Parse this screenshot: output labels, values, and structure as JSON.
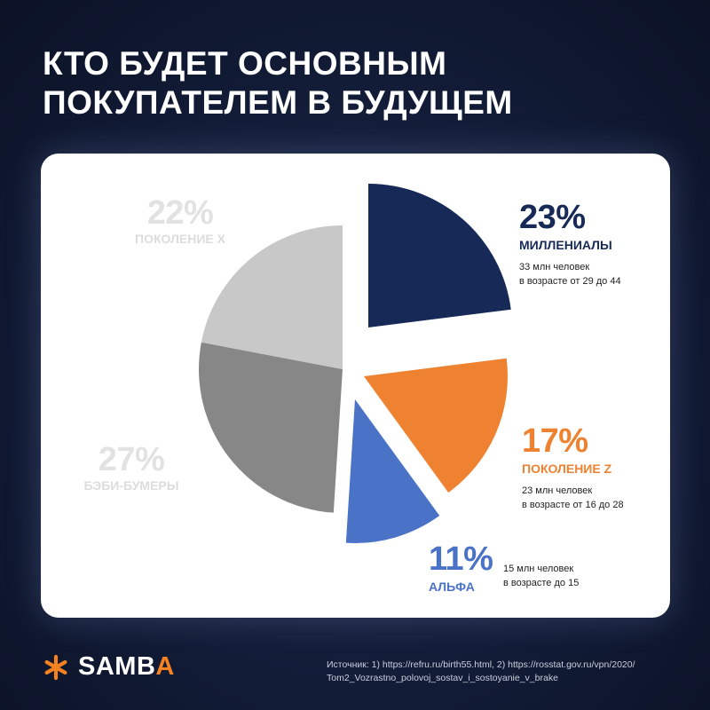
{
  "title": {
    "line1": "КТО БУДЕТ ОСНОВНЫМ",
    "line2": "ПОКУПАТЕЛЕМ В БУДУЩЕМ"
  },
  "chart_data": {
    "type": "pie",
    "title": "КТО БУДЕТ ОСНОВНЫМ ПОКУПАТЕЛЕМ В БУДУЩЕМ",
    "slices": [
      {
        "name": "МИЛЛЕНИАЛЫ",
        "value": 23,
        "label": "23%",
        "color": "#172a57",
        "desc1": "33 млн человек",
        "desc2": "в возрасте от 29 до 44"
      },
      {
        "name": "ПОКОЛЕНИЕ Z",
        "value": 17,
        "label": "17%",
        "color": "#ef8230",
        "desc1": "23 млн человек",
        "desc2": "в возрасте от 16 до 28"
      },
      {
        "name": "АЛЬФА",
        "value": 11,
        "label": "11%",
        "color": "#4a72c6",
        "desc1": "15 млн человек",
        "desc2": "в возрасте до 15"
      },
      {
        "name": "БЭБИ-БУМЕРЫ",
        "value": 27,
        "label": "27%",
        "color": "#878787"
      },
      {
        "name": "ПОКОЛЕНИЕ X",
        "value": 22,
        "label": "22%",
        "color": "#c8c8c8"
      }
    ]
  },
  "footer": {
    "logo_main": "SAMB",
    "logo_accent": "A",
    "logo_accent_color": "#f58220",
    "logo_icon": "asterisk-logo-icon",
    "source_line1": "Источник: 1) https://refru.ru/birth55.html, 2) https://rosstat.gov.ru/vpn/2020/",
    "source_line2": "Tom2_Vozrastno_polovoj_sostav_i_sostoyanie_v_brake"
  }
}
